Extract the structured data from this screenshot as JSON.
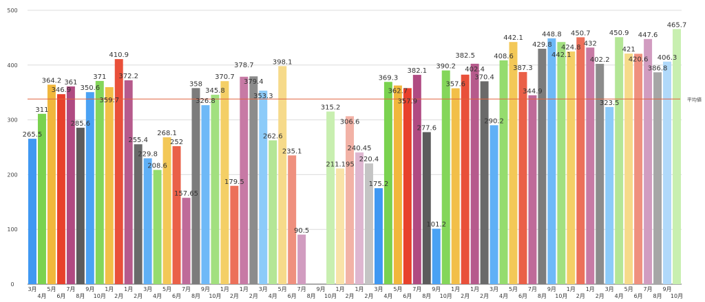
{
  "chart_data": {
    "type": "bar",
    "title": "",
    "xlabel": "",
    "ylabel": "",
    "ylim": [
      0,
      500
    ],
    "yticks": [
      0,
      100,
      200,
      300,
      400,
      500
    ],
    "grid": true,
    "average": {
      "label": "平均値",
      "value": 338,
      "color": "#e0623e"
    },
    "categories": [
      "3月",
      "4月",
      "5月",
      "6月",
      "7月",
      "8月",
      "9月",
      "10月",
      "1月",
      "2月",
      "1月",
      "2月",
      "3月",
      "4月",
      "5月",
      "6月",
      "7月",
      "8月",
      "9月",
      "10月",
      "1月",
      "2月",
      "1月",
      "2月",
      "3月",
      "4月",
      "5月",
      "6月",
      "7月",
      "8月",
      "9月",
      "10月",
      "1月",
      "2月",
      "1月",
      "2月",
      "3月",
      "4月",
      "5月",
      "6月",
      "7月",
      "8月",
      "9月",
      "10月",
      "1月",
      "2月",
      "1月",
      "2月",
      "3月",
      "4月",
      "5月",
      "6月",
      "7月",
      "8月",
      "9月",
      "10月",
      "1月",
      "2月",
      "1月",
      "2月",
      "3月",
      "4月",
      "5月",
      "6月",
      "7月",
      "8月",
      "9月",
      "10月"
    ],
    "values": [
      265.5,
      311,
      364.2,
      346.9,
      361,
      285.6,
      350.6,
      371,
      359.7,
      410.9,
      372.2,
      255.4,
      229.8,
      208.6,
      268.1,
      252,
      157.65,
      358,
      326.8,
      345.8,
      370.7,
      179.5,
      378.7,
      379.4,
      353.3,
      262.6,
      398.1,
      235.1,
      90.5,
      null,
      null,
      315.2,
      211.195,
      306.6,
      240.45,
      220.4,
      175.2,
      369.3,
      362.7,
      357.9,
      382.1,
      277.6,
      101.2,
      390.2,
      357.6,
      382.5,
      402.4,
      370.4,
      290.2,
      408.6,
      442.1,
      387.3,
      344.9,
      429.8,
      448.8,
      442.1,
      424.8,
      450.7,
      432,
      402.2,
      323.5,
      450.9,
      421,
      420.6,
      447.6,
      386.8,
      406.3,
      465.7
    ],
    "colors": [
      "#3f98f2",
      "#7ad24f",
      "#f1b73c",
      "#e8412c",
      "#b04a82",
      "#5c5c5c",
      "#4aa2f4",
      "#84d65a",
      "#f2bf48",
      "#e9503a",
      "#b65a8c",
      "#6a6a6a",
      "#5fb0f6",
      "#95dc6e",
      "#f3c857",
      "#ea6048",
      "#bf6a99",
      "#7c7c7c",
      "#6eb9f7",
      "#a2e07f",
      "#f4cf66",
      "#ec705a",
      "#c77aa5",
      "#8c8c8c",
      "#8ccbf9",
      "#b4e696",
      "#f6da8a",
      "#ef907e",
      "#d19cc0",
      "#a6a6a6",
      "#b0d9fa",
      "#c8efb0",
      "#f9e3a8",
      "#f2b2a6",
      "#deb6d0",
      "#c4c4c4",
      "#3f98f2",
      "#7ad24f",
      "#f1b73c",
      "#e8412c",
      "#b04a82",
      "#5c5c5c",
      "#4aa2f4",
      "#84d65a",
      "#f2bf48",
      "#e9503a",
      "#b65a8c",
      "#6a6a6a",
      "#5fb0f6",
      "#95dc6e",
      "#f3c857",
      "#ea6048",
      "#bf6a99",
      "#7c7c7c",
      "#6eb9f7",
      "#a2e07f",
      "#f4cf66",
      "#ec705a",
      "#c77aa5",
      "#8c8c8c",
      "#8ccbf9",
      "#b4e696",
      "#f6da8a",
      "#ef907e",
      "#d19cc0",
      "#a6a6a6",
      "#b0d9fa",
      "#c8efb0"
    ]
  }
}
